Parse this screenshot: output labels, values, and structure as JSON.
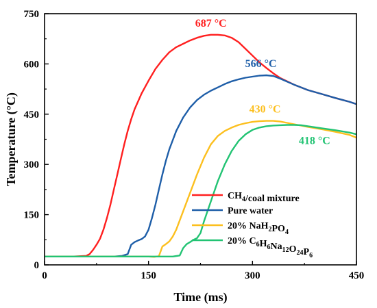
{
  "chart_data": {
    "type": "line",
    "title": "",
    "xlabel": "Time (ms)",
    "ylabel": "Temperature (°C)",
    "xlim": [
      0,
      450
    ],
    "ylim": [
      0,
      750
    ],
    "xticks": [
      0,
      150,
      300,
      450
    ],
    "yticks": [
      0,
      150,
      300,
      450,
      600,
      750
    ],
    "grid": false,
    "legend_position": "bottom-right",
    "series": [
      {
        "name": "CH4/coal mixture",
        "legend_parts": [
          [
            "CH",
            ""
          ],
          [
            "4",
            "sub"
          ],
          [
            "/coal mixture",
            ""
          ]
        ],
        "color": "#ff1f1f",
        "peak_label": "687 °C",
        "points": [
          [
            0,
            25
          ],
          [
            40,
            25
          ],
          [
            60,
            27
          ],
          [
            65,
            32
          ],
          [
            70,
            45
          ],
          [
            75,
            60
          ],
          [
            80,
            78
          ],
          [
            85,
            105
          ],
          [
            90,
            140
          ],
          [
            95,
            180
          ],
          [
            100,
            225
          ],
          [
            105,
            270
          ],
          [
            110,
            315
          ],
          [
            115,
            360
          ],
          [
            120,
            400
          ],
          [
            125,
            435
          ],
          [
            130,
            465
          ],
          [
            140,
            512
          ],
          [
            150,
            550
          ],
          [
            160,
            585
          ],
          [
            170,
            612
          ],
          [
            180,
            635
          ],
          [
            190,
            650
          ],
          [
            200,
            660
          ],
          [
            210,
            670
          ],
          [
            220,
            678
          ],
          [
            230,
            684
          ],
          [
            240,
            687
          ],
          [
            250,
            687
          ],
          [
            260,
            685
          ],
          [
            270,
            678
          ],
          [
            280,
            665
          ],
          [
            290,
            645
          ],
          [
            300,
            625
          ],
          [
            310,
            605
          ],
          [
            320,
            588
          ],
          [
            330,
            572
          ],
          [
            340,
            558
          ],
          [
            360,
            538
          ],
          [
            380,
            522
          ],
          [
            400,
            510
          ],
          [
            420,
            498
          ],
          [
            440,
            487
          ],
          [
            450,
            480
          ]
        ]
      },
      {
        "name": "Pure water",
        "legend_parts": [
          [
            "Pure water",
            ""
          ]
        ],
        "color": "#1e5ea8",
        "peak_label": "566 °C",
        "points": [
          [
            0,
            25
          ],
          [
            100,
            25
          ],
          [
            112,
            27
          ],
          [
            120,
            32
          ],
          [
            125,
            60
          ],
          [
            130,
            68
          ],
          [
            135,
            73
          ],
          [
            140,
            77
          ],
          [
            145,
            85
          ],
          [
            150,
            105
          ],
          [
            155,
            140
          ],
          [
            160,
            180
          ],
          [
            165,
            225
          ],
          [
            170,
            270
          ],
          [
            175,
            310
          ],
          [
            180,
            345
          ],
          [
            190,
            400
          ],
          [
            200,
            440
          ],
          [
            210,
            470
          ],
          [
            220,
            492
          ],
          [
            230,
            508
          ],
          [
            240,
            520
          ],
          [
            250,
            530
          ],
          [
            260,
            540
          ],
          [
            270,
            548
          ],
          [
            280,
            554
          ],
          [
            290,
            559
          ],
          [
            300,
            562
          ],
          [
            310,
            565
          ],
          [
            320,
            566
          ],
          [
            330,
            564
          ],
          [
            340,
            556
          ],
          [
            350,
            547
          ],
          [
            360,
            538
          ],
          [
            380,
            522
          ],
          [
            400,
            510
          ],
          [
            420,
            498
          ],
          [
            440,
            487
          ],
          [
            450,
            480
          ]
        ]
      },
      {
        "name": "20% NaH2PO4",
        "legend_parts": [
          [
            "20% NaH",
            ""
          ],
          [
            "2",
            "sub"
          ],
          [
            "PO",
            ""
          ],
          [
            "4",
            "sub"
          ]
        ],
        "color": "#fcbf1e",
        "peak_label": "430 °C",
        "points": [
          [
            0,
            25
          ],
          [
            150,
            25
          ],
          [
            158,
            24
          ],
          [
            165,
            26
          ],
          [
            170,
            55
          ],
          [
            175,
            62
          ],
          [
            180,
            70
          ],
          [
            185,
            85
          ],
          [
            190,
            105
          ],
          [
            200,
            160
          ],
          [
            210,
            215
          ],
          [
            220,
            270
          ],
          [
            230,
            320
          ],
          [
            240,
            360
          ],
          [
            250,
            385
          ],
          [
            260,
            400
          ],
          [
            270,
            410
          ],
          [
            280,
            418
          ],
          [
            290,
            423
          ],
          [
            300,
            427
          ],
          [
            310,
            429
          ],
          [
            320,
            430
          ],
          [
            330,
            430
          ],
          [
            340,
            428
          ],
          [
            350,
            424
          ],
          [
            360,
            420
          ],
          [
            380,
            412
          ],
          [
            400,
            405
          ],
          [
            420,
            397
          ],
          [
            440,
            388
          ],
          [
            450,
            380
          ]
        ]
      },
      {
        "name": "20% C6H6Na12O24P6",
        "legend_parts": [
          [
            "20% C",
            ""
          ],
          [
            "6",
            "sub"
          ],
          [
            "H",
            ""
          ],
          [
            "6",
            "sub"
          ],
          [
            "Na",
            ""
          ],
          [
            "12",
            "sub"
          ],
          [
            "O",
            ""
          ],
          [
            "24",
            "sub"
          ],
          [
            "P",
            ""
          ],
          [
            "6",
            "sub"
          ]
        ],
        "color": "#22c373",
        "peak_label": "418 °C",
        "points": [
          [
            0,
            25
          ],
          [
            185,
            25
          ],
          [
            195,
            28
          ],
          [
            200,
            50
          ],
          [
            205,
            62
          ],
          [
            210,
            68
          ],
          [
            215,
            75
          ],
          [
            220,
            80
          ],
          [
            225,
            95
          ],
          [
            230,
            130
          ],
          [
            240,
            190
          ],
          [
            250,
            250
          ],
          [
            260,
            300
          ],
          [
            270,
            340
          ],
          [
            280,
            370
          ],
          [
            290,
            390
          ],
          [
            300,
            403
          ],
          [
            310,
            410
          ],
          [
            320,
            414
          ],
          [
            330,
            416
          ],
          [
            340,
            417
          ],
          [
            350,
            418
          ],
          [
            360,
            418
          ],
          [
            370,
            417
          ],
          [
            380,
            414
          ],
          [
            400,
            408
          ],
          [
            420,
            402
          ],
          [
            440,
            395
          ],
          [
            450,
            390
          ]
        ]
      }
    ]
  }
}
